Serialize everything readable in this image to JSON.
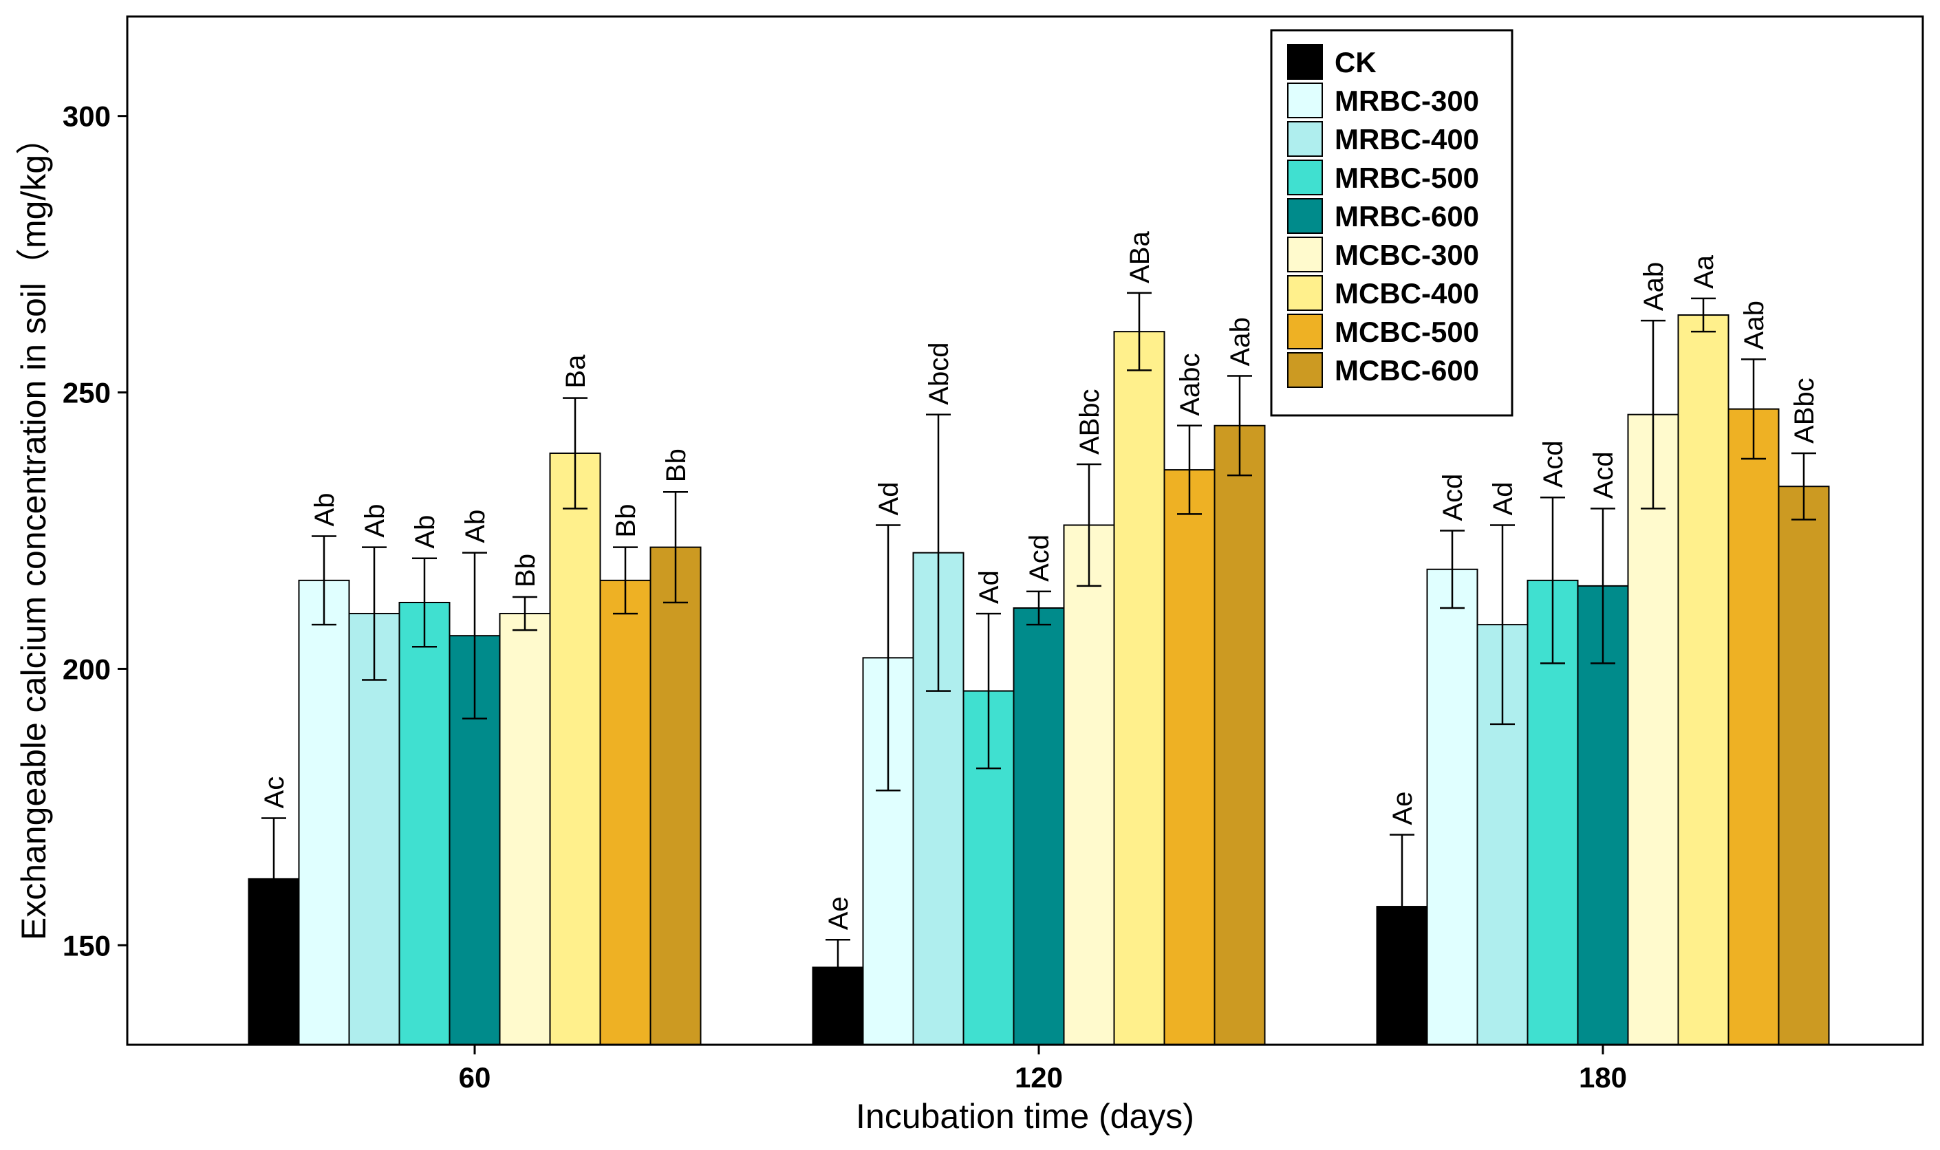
{
  "chart_data": {
    "type": "bar",
    "xlabel": "Incubation time (days)",
    "ylabel": "Exchangeable calcium concentration in soil（mg/kg）",
    "ylim": [
      132,
      318
    ],
    "yticks": [
      150,
      200,
      250,
      300
    ],
    "categories": [
      "60",
      "120",
      "180"
    ],
    "grid": false,
    "legend_position": "top-right",
    "series": [
      {
        "name": "CK",
        "color": "#000000",
        "values": [
          162,
          146,
          157
        ],
        "errors": [
          11,
          5,
          13
        ],
        "labels": [
          "Ac",
          "Ae",
          "Ae"
        ]
      },
      {
        "name": "MRBC-300",
        "color": "#E0FFFF",
        "values": [
          216,
          202,
          218
        ],
        "errors": [
          8,
          24,
          7
        ],
        "labels": [
          "Ab",
          "Ad",
          "Acd"
        ]
      },
      {
        "name": "MRBC-400",
        "color": "#AFEEEE",
        "values": [
          210,
          221,
          208
        ],
        "errors": [
          12,
          25,
          18
        ],
        "labels": [
          "Ab",
          "Abcd",
          "Ad"
        ]
      },
      {
        "name": "MRBC-500",
        "color": "#40E0D0",
        "values": [
          212,
          196,
          216
        ],
        "errors": [
          8,
          14,
          15
        ],
        "labels": [
          "Ab",
          "Ad",
          "Acd"
        ]
      },
      {
        "name": "MRBC-600",
        "color": "#008B8B",
        "values": [
          206,
          211,
          215
        ],
        "errors": [
          15,
          3,
          14
        ],
        "labels": [
          "Ab",
          "Acd",
          "Acd"
        ]
      },
      {
        "name": "MCBC-300",
        "color": "#FFFACD",
        "values": [
          210,
          226,
          246
        ],
        "errors": [
          3,
          11,
          17
        ],
        "labels": [
          "Bb",
          "ABbc",
          "Aab"
        ]
      },
      {
        "name": "MCBC-400",
        "color": "#FFF08C",
        "values": [
          239,
          261,
          264
        ],
        "errors": [
          10,
          7,
          3
        ],
        "labels": [
          "Ba",
          "ABa",
          "Aa"
        ]
      },
      {
        "name": "MCBC-500",
        "color": "#EEB124",
        "values": [
          216,
          236,
          247
        ],
        "errors": [
          6,
          8,
          9
        ],
        "labels": [
          "Bb",
          "Aabc",
          "Aab"
        ]
      },
      {
        "name": "MCBC-600",
        "color": "#CC9A22",
        "values": [
          222,
          244,
          233
        ],
        "errors": [
          10,
          9,
          6
        ],
        "labels": [
          "Bb",
          "Aab",
          "ABbc"
        ]
      }
    ]
  }
}
